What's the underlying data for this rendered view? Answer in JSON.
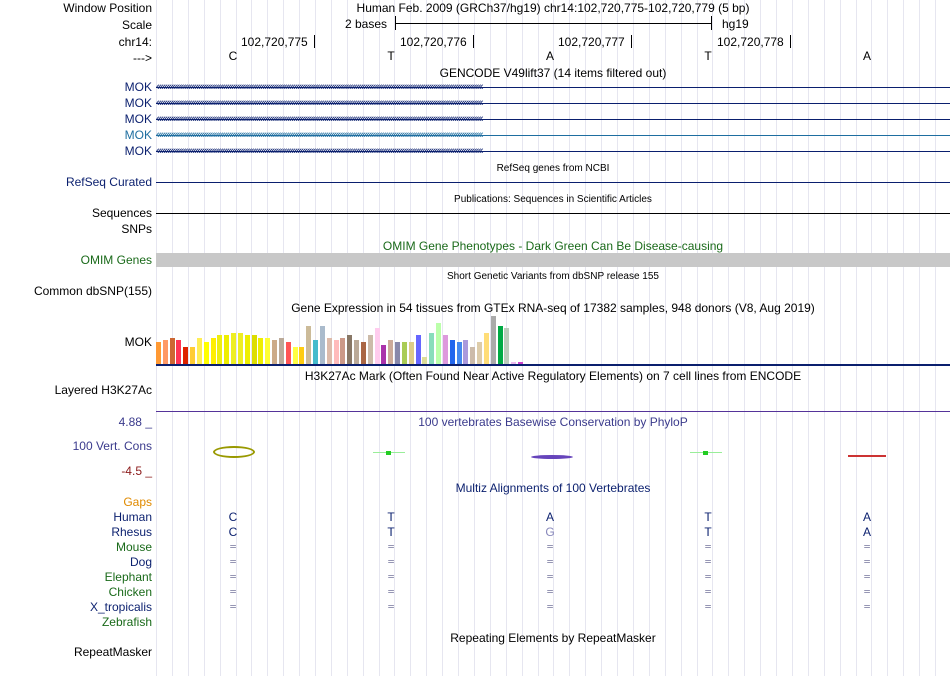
{
  "header": {
    "window_position_label": "Window Position",
    "title": "Human Feb. 2009 (GRCh37/hg19)   chr14:102,720,775-102,720,779 (5 bp)",
    "scale_label": "Scale",
    "scale_text": "2 bases",
    "scale_assembly": "hg19",
    "chrom_label": "chr14:",
    "strand_label": "--->",
    "ticks": [
      "102,720,775",
      "102,720,776",
      "102,720,777",
      "102,720,778"
    ],
    "bases": [
      "C",
      "T",
      "A",
      "T",
      "A"
    ]
  },
  "gencode": {
    "title": "GENCODE V49lift37 (14 items filtered out)",
    "genes": [
      "MOK",
      "MOK",
      "MOK",
      "MOK",
      "MOK"
    ],
    "arrow_glyphs": "‹‹‹‹‹‹‹‹‹‹‹‹‹‹‹‹‹‹‹‹‹‹‹‹‹‹‹‹‹‹‹‹‹‹‹‹‹‹‹‹‹‹‹‹‹‹‹‹‹‹‹‹‹‹‹‹‹‹‹‹‹‹‹‹‹‹‹‹‹‹‹‹‹‹‹‹‹‹‹‹‹‹‹‹‹‹‹‹‹‹‹‹‹‹‹‹‹‹‹‹‹‹‹‹‹‹‹‹‹‹‹‹‹‹‹‹‹‹‹‹‹‹‹‹‹‹‹‹‹‹‹‹‹‹‹‹‹‹‹‹‹‹‹‹‹‹‹‹‹‹‹‹‹‹‹‹‹‹",
    "colors": [
      "#0a1f6e",
      "#0a1f6e",
      "#0a1f6e",
      "#1e6ea0",
      "#0a1f6e"
    ]
  },
  "refseq": {
    "title": "RefSeq genes from NCBI",
    "label": "RefSeq Curated"
  },
  "publications": {
    "title": "Publications: Sequences in Scientific Articles",
    "label": "Sequences"
  },
  "snps_label": "SNPs",
  "omim": {
    "title": "OMIM Gene Phenotypes - Dark Green Can Be Disease-causing",
    "label": "OMIM Genes"
  },
  "dbsnp": {
    "title": "Short Genetic Variants from dbSNP release 155",
    "label": "Common dbSNP(155)"
  },
  "gtex": {
    "title": "Gene Expression in 54 tissues from GTEx RNA-seq of 17382 samples, 948 donors (V8, Aug 2019)",
    "label": "MOK",
    "tissue_values": [
      0.45,
      0.5,
      0.55,
      0.5,
      0.35,
      0.35,
      0.55,
      0.45,
      0.55,
      0.6,
      0.6,
      0.65,
      0.65,
      0.6,
      0.6,
      0.55,
      0.55,
      0.5,
      0.55,
      0.45,
      0.35,
      0.35,
      0.8,
      0.5,
      0.8,
      0.55,
      0.5,
      0.55,
      0.6,
      0.5,
      0.45,
      0.6,
      0.75,
      0.4,
      0.5,
      0.45,
      0.45,
      0.45,
      0.6,
      0.15,
      0.65,
      0.85,
      0.6,
      0.5,
      0.45,
      0.5,
      0.35,
      0.45,
      0.65,
      1.0,
      0.8,
      0.75,
      0.05,
      0.05
    ],
    "tissue_colors": [
      "#ff9933",
      "#ff9966",
      "#cc6633",
      "#ff3355",
      "#dd2200",
      "#ffcc33",
      "#ffee55",
      "#ffff00",
      "#ffee00",
      "#eeee11",
      "#eeee00",
      "#eeee22",
      "#eeee22",
      "#eeee00",
      "#dddd00",
      "#eeee00",
      "#ffff33",
      "#ccaa88",
      "#bbaa99",
      "#ff5555",
      "#ffff44",
      "#ffcc11",
      "#ccbb99",
      "#44bbcc",
      "#aabbcc",
      "#ddbbaa",
      "#ffbbbb",
      "#cc9988",
      "#887766",
      "#bbaa99",
      "#aa6644",
      "#ccbbaa",
      "#ffccee",
      "#aa33aa",
      "#ccaa99",
      "#8888aa",
      "#aacc55",
      "#ddcc88",
      "#6666ff",
      "#dddd99",
      "#88ddbb",
      "#bbffaa",
      "#dd99dd",
      "#2266ee",
      "#4488ee",
      "#aa99dd",
      "#ccbbaa",
      "#ddccaa",
      "#ffdd77",
      "#aaaaaa",
      "#00aa44",
      "#bbccbb",
      "#eebbee",
      "#cc44cc"
    ]
  },
  "h3k27ac": {
    "title": "H3K27Ac Mark (Often Found Near Active Regulatory Elements) on 7 cell lines from ENCODE",
    "label": "Layered H3K27Ac"
  },
  "phylop": {
    "title": "100 vertebrates Basewise Conservation by PhyloP",
    "label": "100 Vert. Cons",
    "max_label": "4.88 _",
    "min_label": "-4.5 _",
    "marks": [
      {
        "pos": 0,
        "color": "#999900"
      },
      {
        "pos": 1,
        "color": "#22cc22"
      },
      {
        "pos": 2,
        "color": "#6644bb"
      },
      {
        "pos": 3,
        "color": "#22cc22"
      },
      {
        "pos": 4,
        "color": "#cc3333"
      }
    ]
  },
  "multiz": {
    "title": "Multiz Alignments of 100 Vertebrates",
    "gaps_label": "Gaps",
    "species": [
      {
        "name": "Human",
        "color": "#0a1f6e",
        "bases": [
          "C",
          "T",
          "A",
          "T",
          "A"
        ]
      },
      {
        "name": "Rhesus",
        "color": "#0a1f6e",
        "bases": [
          "C",
          "T",
          "G",
          "T",
          "A"
        ]
      },
      {
        "name": "Mouse",
        "color": "#1a6a1a",
        "bases": [
          "=",
          "=",
          "=",
          "=",
          "="
        ]
      },
      {
        "name": "Dog",
        "color": "#0a1f6e",
        "bases": [
          "=",
          "=",
          "=",
          "=",
          "="
        ]
      },
      {
        "name": "Elephant",
        "color": "#1a6a1a",
        "bases": [
          "=",
          "=",
          "=",
          "=",
          "="
        ]
      },
      {
        "name": "Chicken",
        "color": "#1a6a1a",
        "bases": [
          "=",
          "=",
          "=",
          "=",
          "="
        ]
      },
      {
        "name": "X_tropicalis",
        "color": "#0a1f6e",
        "bases": [
          "=",
          "=",
          "=",
          "=",
          "="
        ]
      },
      {
        "name": "Zebrafish",
        "color": "#1a6a1a",
        "bases": [
          "",
          "",
          "",
          "",
          ""
        ]
      }
    ]
  },
  "repeatmasker": {
    "title": "Repeating Elements by RepeatMasker",
    "label": "RepeatMasker"
  },
  "colors": {
    "navy": "#0a1f6e",
    "green": "#1a6a1a",
    "gaps": "#e08a00",
    "phylop_blue": "#3a3a8c",
    "phylop_red": "#8b1a1a",
    "omim_bar": "#c8c8c8"
  }
}
